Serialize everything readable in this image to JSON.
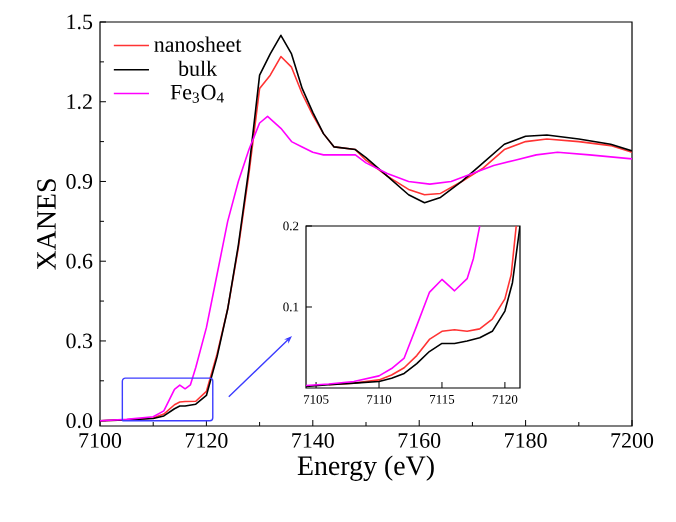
{
  "chart_data": [
    {
      "type": "line",
      "xlabel": "Energy (eV)",
      "ylabel": "XANES",
      "xlim": [
        7100,
        7200
      ],
      "ylim": [
        -0.02,
        1.5
      ],
      "xticks": [
        7100,
        7120,
        7140,
        7160,
        7180,
        7200
      ],
      "yticks": [
        {
          "value": 0,
          "label": "0.0"
        },
        0.3,
        0.6,
        0.9,
        1.2,
        1.5
      ],
      "legend": "top left",
      "series": [
        {
          "name": "nanosheet",
          "color": "#ff3333",
          "x": [
            7100,
            7105,
            7110,
            7112,
            7114,
            7115,
            7116,
            7118,
            7120,
            7122,
            7124,
            7126,
            7128,
            7130,
            7132,
            7134,
            7136,
            7138,
            7140,
            7142,
            7144,
            7148,
            7150,
            7154,
            7158,
            7161,
            7164,
            7168,
            7172,
            7176,
            7180,
            7184,
            7190,
            7196,
            7200
          ],
          "values": [
            0.0,
            0.003,
            0.01,
            0.025,
            0.06,
            0.07,
            0.072,
            0.073,
            0.11,
            0.25,
            0.42,
            0.65,
            0.93,
            1.25,
            1.3,
            1.37,
            1.33,
            1.23,
            1.15,
            1.08,
            1.03,
            1.02,
            0.98,
            0.92,
            0.87,
            0.85,
            0.855,
            0.9,
            0.95,
            1.02,
            1.05,
            1.06,
            1.05,
            1.035,
            1.01
          ]
        },
        {
          "name": "bulk",
          "color": "#000000",
          "x": [
            7100,
            7105,
            7110,
            7112,
            7114,
            7115,
            7116,
            7118,
            7120,
            7122,
            7124,
            7126,
            7128,
            7130,
            7132,
            7134,
            7136,
            7138,
            7140,
            7142,
            7144,
            7148,
            7150,
            7154,
            7158,
            7161,
            7164,
            7168,
            7172,
            7176,
            7180,
            7184,
            7190,
            7196,
            7200
          ],
          "values": [
            0.0,
            0.003,
            0.008,
            0.018,
            0.045,
            0.055,
            0.055,
            0.062,
            0.095,
            0.24,
            0.42,
            0.66,
            0.95,
            1.3,
            1.38,
            1.45,
            1.38,
            1.25,
            1.16,
            1.08,
            1.03,
            1.02,
            0.99,
            0.92,
            0.85,
            0.82,
            0.84,
            0.9,
            0.97,
            1.04,
            1.07,
            1.075,
            1.06,
            1.04,
            1.015
          ]
        },
        {
          "name": "Fe$_{3}$O$_{4}$",
          "color": "#ff00ff",
          "x": [
            7100,
            7105,
            7110,
            7112,
            7113,
            7114,
            7115,
            7116,
            7117,
            7118,
            7120,
            7122,
            7124,
            7126,
            7128,
            7130,
            7131.5,
            7134,
            7136,
            7138,
            7140,
            7142,
            7146,
            7148,
            7150,
            7154,
            7158,
            7162,
            7166,
            7170,
            7174,
            7178,
            7182,
            7186,
            7192,
            7200
          ],
          "values": [
            0.0,
            0.005,
            0.015,
            0.037,
            0.077,
            0.118,
            0.134,
            0.12,
            0.135,
            0.2,
            0.35,
            0.55,
            0.75,
            0.9,
            1.02,
            1.12,
            1.145,
            1.1,
            1.05,
            1.03,
            1.01,
            1.0,
            1.0,
            1.0,
            0.97,
            0.93,
            0.9,
            0.89,
            0.9,
            0.93,
            0.96,
            0.98,
            1.0,
            1.01,
            1.0,
            0.985
          ]
        }
      ]
    },
    {
      "type": "line",
      "xlim": [
        7104.2,
        7121.2
      ],
      "ylim": [
        0,
        0.2
      ],
      "xticks": [
        7105,
        7110,
        7115,
        7120
      ],
      "yticks": [
        0.1,
        0.2
      ],
      "series": [
        {
          "color": "#ff3333",
          "x": [
            7106,
            7108,
            7110,
            7111,
            7112,
            7113,
            7114,
            7115,
            7116,
            7117,
            7118,
            7119,
            7120,
            7120.5,
            7120.9
          ],
          "values": [
            0.004,
            0.006,
            0.01,
            0.016,
            0.025,
            0.04,
            0.06,
            0.07,
            0.072,
            0.07,
            0.073,
            0.085,
            0.11,
            0.14,
            0.2
          ]
        },
        {
          "color": "#000000",
          "x": [
            7104.2,
            7106,
            7108,
            7110,
            7111,
            7112,
            7113,
            7114,
            7115,
            7116,
            7117,
            7118,
            7119,
            7120,
            7120.6,
            7121.2
          ],
          "values": [
            0.002,
            0.004,
            0.006,
            0.008,
            0.012,
            0.018,
            0.03,
            0.045,
            0.055,
            0.055,
            0.058,
            0.062,
            0.07,
            0.095,
            0.13,
            0.2
          ]
        },
        {
          "color": "#ff00ff",
          "x": [
            7104.2,
            7106,
            7108,
            7110,
            7111,
            7112,
            7113,
            7114,
            7115,
            7116,
            7117,
            7117.5,
            7118
          ],
          "values": [
            0.003,
            0.005,
            0.008,
            0.015,
            0.024,
            0.037,
            0.077,
            0.118,
            0.134,
            0.12,
            0.135,
            0.16,
            0.2
          ]
        }
      ]
    }
  ]
}
